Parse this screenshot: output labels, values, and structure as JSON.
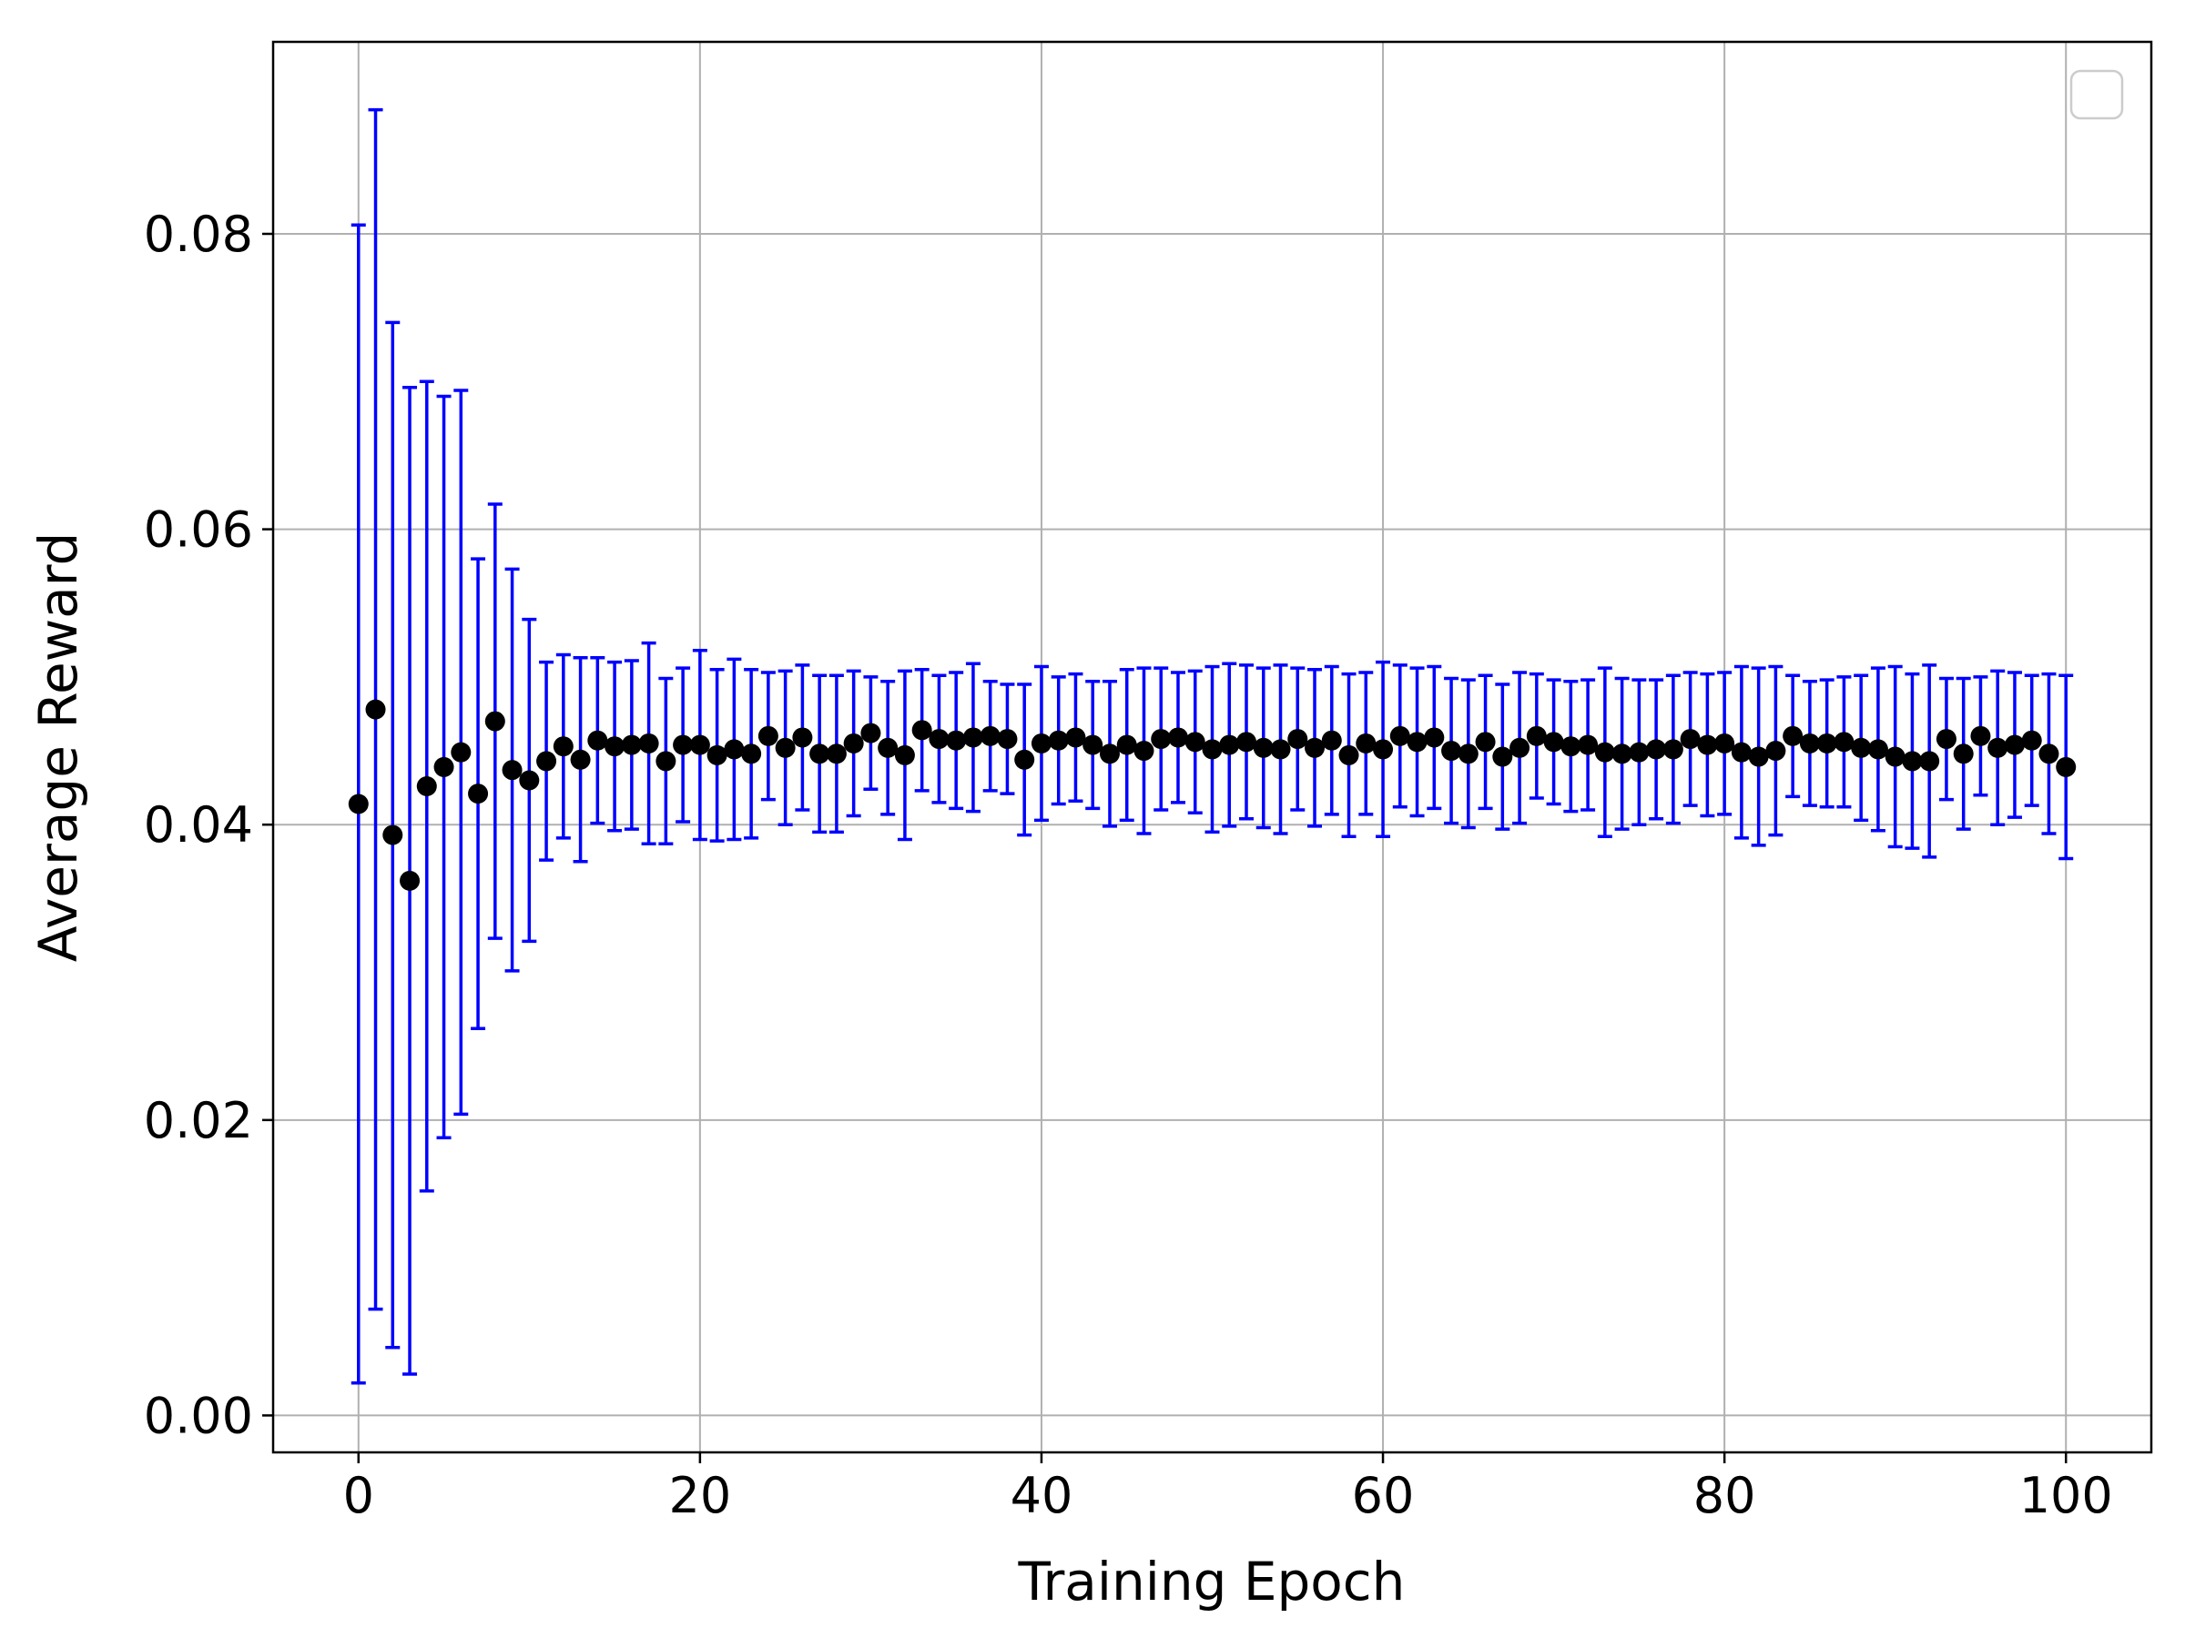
{
  "chart_data": {
    "type": "scatter",
    "title": "",
    "xlabel": "Training Epoch",
    "ylabel": "Average Reward",
    "xlim": [
      -5,
      105
    ],
    "ylim": [
      -0.0025,
      0.093
    ],
    "xticks": [
      0,
      20,
      40,
      60,
      80,
      100
    ],
    "yticks": [
      0.0,
      0.02,
      0.04,
      0.06,
      0.08
    ],
    "xtick_labels": [
      "0",
      "20",
      "40",
      "60",
      "80",
      "100"
    ],
    "ytick_labels": [
      "0.00",
      "0.02",
      "0.04",
      "0.06",
      "0.08"
    ],
    "grid": true,
    "legend": {
      "placement": "top-right",
      "entries": []
    },
    "marker_color": "#000000",
    "errorbar_color": "#0000ff",
    "x": [
      0,
      1,
      2,
      3,
      4,
      5,
      6,
      7,
      8,
      9,
      10,
      11,
      12,
      13,
      14,
      15,
      16,
      17,
      18,
      19,
      20,
      21,
      22,
      23,
      24,
      25,
      26,
      27,
      28,
      29,
      30,
      31,
      32,
      33,
      34,
      35,
      36,
      37,
      38,
      39,
      40,
      41,
      42,
      43,
      44,
      45,
      46,
      47,
      48,
      49,
      50,
      51,
      52,
      53,
      54,
      55,
      56,
      57,
      58,
      59,
      60,
      61,
      62,
      63,
      64,
      65,
      66,
      67,
      68,
      69,
      70,
      71,
      72,
      73,
      74,
      75,
      76,
      77,
      78,
      79,
      80,
      81,
      82,
      83,
      84,
      85,
      86,
      87,
      88,
      89,
      90,
      91,
      92,
      93,
      94,
      95,
      96,
      97,
      98,
      99,
      100
    ],
    "y": [
      0.0414,
      0.0478,
      0.0393,
      0.0362,
      0.0426,
      0.0439,
      0.0449,
      0.0421,
      0.047,
      0.0437,
      0.043,
      0.0443,
      0.0453,
      0.0444,
      0.0457,
      0.0453,
      0.0454,
      0.0455,
      0.0443,
      0.0454,
      0.0454,
      0.0447,
      0.0451,
      0.0448,
      0.046,
      0.0452,
      0.0459,
      0.0448,
      0.0448,
      0.0455,
      0.0462,
      0.0452,
      0.0447,
      0.0464,
      0.0458,
      0.0457,
      0.0459,
      0.046,
      0.0458,
      0.0444,
      0.0455,
      0.0457,
      0.0459,
      0.0454,
      0.0448,
      0.0454,
      0.045,
      0.0458,
      0.0459,
      0.0456,
      0.0451,
      0.0454,
      0.0456,
      0.0452,
      0.0451,
      0.0458,
      0.0452,
      0.0457,
      0.0447,
      0.0455,
      0.0451,
      0.046,
      0.0456,
      0.0459,
      0.045,
      0.0448,
      0.0456,
      0.0446,
      0.0452,
      0.046,
      0.0456,
      0.0453,
      0.0454,
      0.0449,
      0.0448,
      0.0449,
      0.0451,
      0.0451,
      0.0458,
      0.0454,
      0.0455,
      0.0449,
      0.0446,
      0.045,
      0.046,
      0.0455,
      0.0455,
      0.0456,
      0.0452,
      0.0451,
      0.0446,
      0.0443,
      0.0443,
      0.0458,
      0.0448,
      0.046,
      0.0452,
      0.0454,
      0.0457,
      0.0448,
      0.0439
    ],
    "yerr": [
      0.0392,
      0.0406,
      0.0347,
      0.0334,
      0.0274,
      0.0251,
      0.0245,
      0.0159,
      0.0147,
      0.0136,
      0.0109,
      0.0067,
      0.0062,
      0.0069,
      0.0056,
      0.0057,
      0.0057,
      0.0068,
      0.0056,
      0.0052,
      0.0064,
      0.0058,
      0.0061,
      0.0057,
      0.0043,
      0.0052,
      0.0049,
      0.0053,
      0.0053,
      0.0049,
      0.0038,
      0.0045,
      0.0057,
      0.0041,
      0.0043,
      0.0046,
      0.005,
      0.0037,
      0.0037,
      0.0051,
      0.0052,
      0.0043,
      0.0043,
      0.0043,
      0.0049,
      0.0051,
      0.0056,
      0.0048,
      0.0044,
      0.0048,
      0.0056,
      0.0055,
      0.0052,
      0.0054,
      0.0057,
      0.0048,
      0.0053,
      0.005,
      0.0055,
      0.0048,
      0.0059,
      0.0048,
      0.005,
      0.0048,
      0.0049,
      0.005,
      0.0045,
      0.0049,
      0.0051,
      0.0042,
      0.0042,
      0.0044,
      0.0044,
      0.0057,
      0.0051,
      0.0049,
      0.0047,
      0.005,
      0.0045,
      0.0048,
      0.0048,
      0.0058,
      0.006,
      0.0057,
      0.0041,
      0.0042,
      0.0043,
      0.0044,
      0.0049,
      0.0055,
      0.0061,
      0.0059,
      0.0065,
      0.0041,
      0.0051,
      0.004,
      0.0052,
      0.0049,
      0.0044,
      0.0054,
      0.0062
    ]
  }
}
